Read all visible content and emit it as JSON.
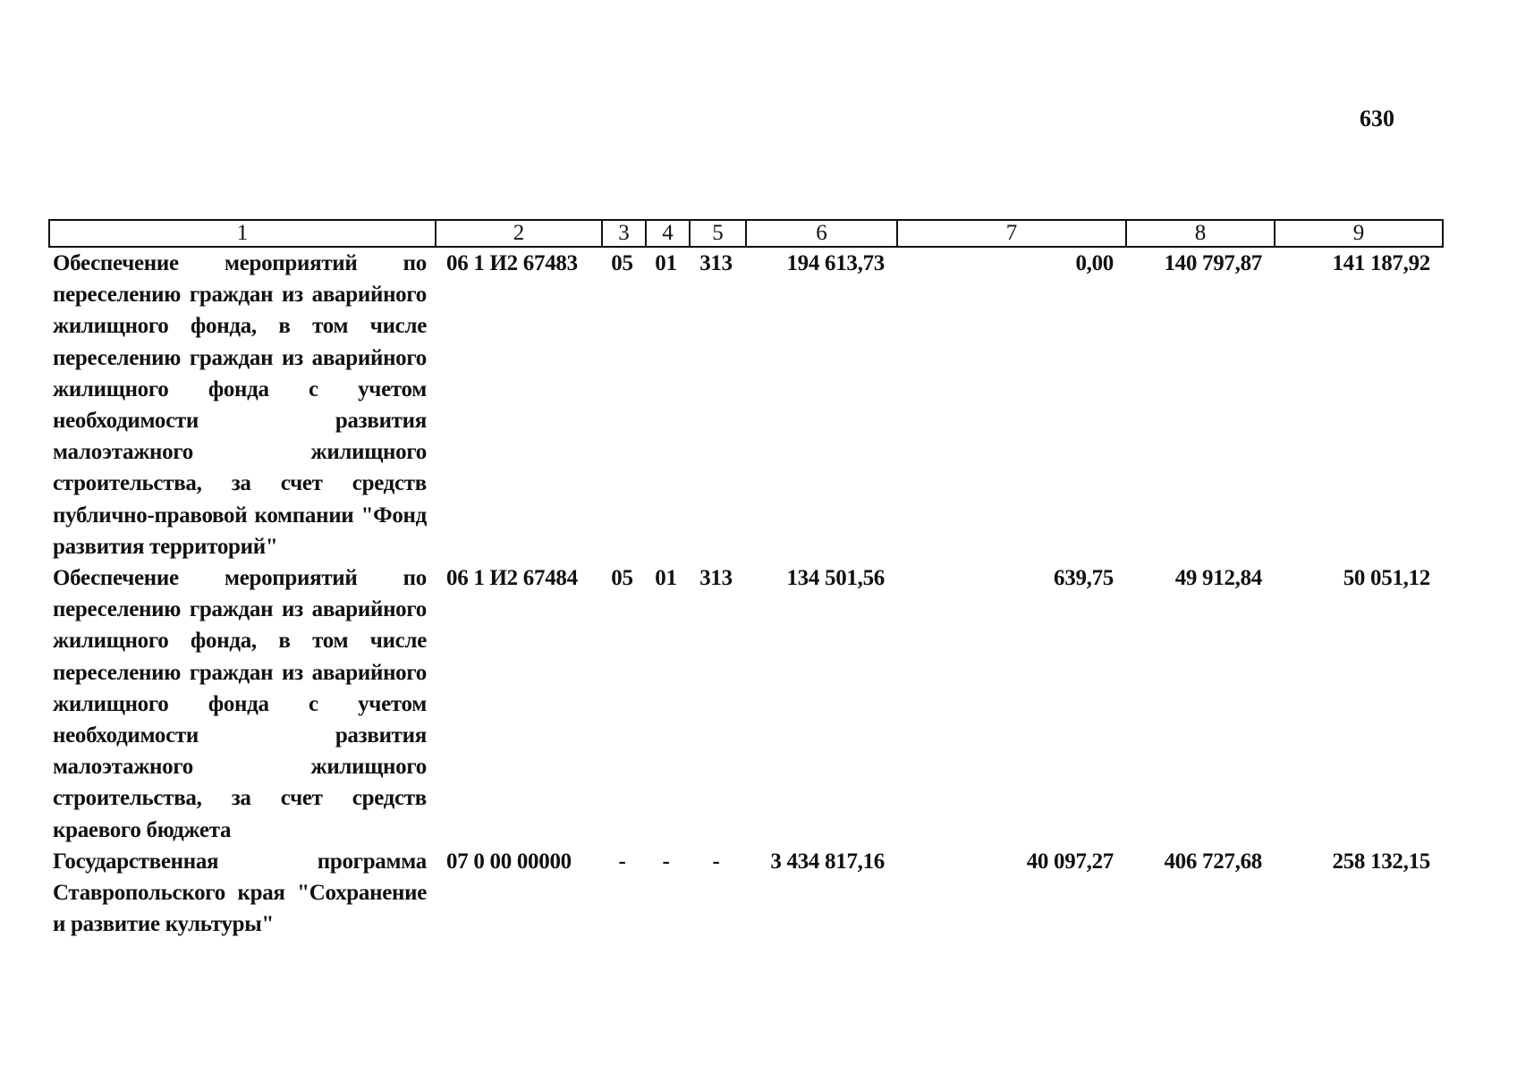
{
  "header": {
    "page_number": "630"
  },
  "table": {
    "columns": [
      "1",
      "2",
      "3",
      "4",
      "5",
      "6",
      "7",
      "8",
      "9"
    ],
    "rows": [
      [
        "Обеспечение мероприятий по переселению граждан из аварийного жилищного фонда, в том числе переселению граждан из аварийного жилищного фонда с учетом необходимости развития малоэтажного жилищного строительства, за счет средств публично-правовой компании \"Фонд развития территорий\"",
        "06 1 И2 67483",
        "05",
        "01",
        "313",
        "194 613,73",
        "0,00",
        "140 797,87",
        "141 187,92"
      ],
      [
        "Обеспечение мероприятий по переселению граждан из аварийного жилищного фонда, в том числе переселению граждан из аварийного жилищного фонда с учетом необходимости развития малоэтажного жилищного строительства, за счет средств краевого бюджета",
        "06 1 И2 67484",
        "05",
        "01",
        "313",
        "134 501,56",
        "639,75",
        "49 912,84",
        "50 051,12"
      ],
      [
        "Государственная программа Ставропольского края \"Сохранение и развитие культуры\"",
        "07 0 00 00000",
        "-",
        "-",
        "-",
        "3 434 817,16",
        "40 097,27",
        "406 727,68",
        "258 132,15"
      ]
    ]
  }
}
